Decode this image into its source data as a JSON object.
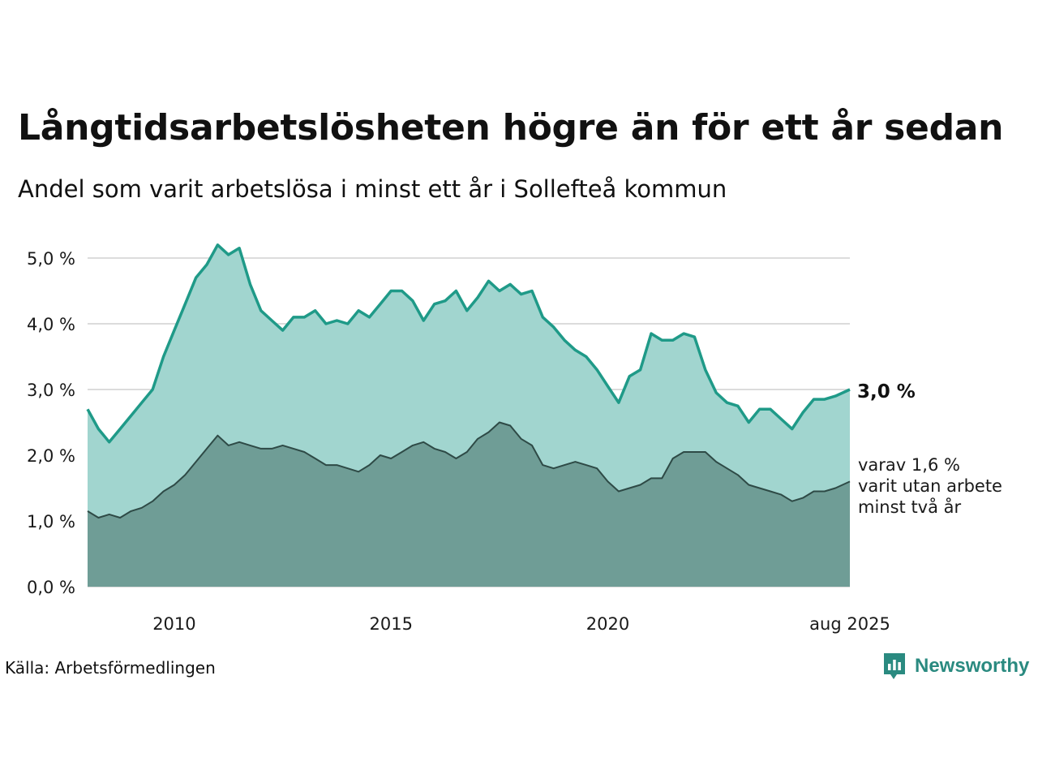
{
  "title": "Långtidsarbetslösheten högre än för ett år sedan",
  "subtitle": "Andel som varit arbetslösa i minst ett år i Sollefteå kommun",
  "source": "Källa: Arbetsförmedlingen",
  "brand": "Newsworthy",
  "colors": {
    "main_line": "#1f9a88",
    "main_fill": "#a1d5cf",
    "sub_fill": "#6f9d96",
    "sub_line": "#2e4a46",
    "grid": "#dcdcdc",
    "brand": "#2a8a80"
  },
  "chart_data": {
    "type": "area",
    "y_ticks": [
      "0,0 %",
      "1,0 %",
      "2,0 %",
      "3,0 %",
      "4,0 %",
      "5,0 %"
    ],
    "x_ticks": [
      "2010",
      "2015",
      "2020",
      "aug 2025"
    ],
    "ylim": [
      0,
      5.5
    ],
    "grid": true,
    "end_label": "3,0 %",
    "sub_note": [
      "varav 1,6 %",
      "varit utan arbete",
      "minst två år"
    ],
    "series": [
      {
        "key": "long_term_1y",
        "points": [
          [
            "2008-01",
            2.7
          ],
          [
            "2008-04",
            2.4
          ],
          [
            "2008-07",
            2.2
          ],
          [
            "2008-10",
            2.4
          ],
          [
            "2009-01",
            2.6
          ],
          [
            "2009-04",
            2.8
          ],
          [
            "2009-07",
            3.0
          ],
          [
            "2009-10",
            3.5
          ],
          [
            "2010-01",
            3.9
          ],
          [
            "2010-04",
            4.3
          ],
          [
            "2010-07",
            4.7
          ],
          [
            "2010-10",
            4.9
          ],
          [
            "2011-01",
            5.2
          ],
          [
            "2011-04",
            5.05
          ],
          [
            "2011-07",
            5.15
          ],
          [
            "2011-10",
            4.6
          ],
          [
            "2012-01",
            4.2
          ],
          [
            "2012-04",
            4.05
          ],
          [
            "2012-07",
            3.9
          ],
          [
            "2012-10",
            4.1
          ],
          [
            "2013-01",
            4.1
          ],
          [
            "2013-04",
            4.2
          ],
          [
            "2013-07",
            4.0
          ],
          [
            "2013-10",
            4.05
          ],
          [
            "2014-01",
            4.0
          ],
          [
            "2014-04",
            4.2
          ],
          [
            "2014-07",
            4.1
          ],
          [
            "2014-10",
            4.3
          ],
          [
            "2015-01",
            4.5
          ],
          [
            "2015-04",
            4.5
          ],
          [
            "2015-07",
            4.35
          ],
          [
            "2015-10",
            4.05
          ],
          [
            "2016-01",
            4.3
          ],
          [
            "2016-04",
            4.35
          ],
          [
            "2016-07",
            4.5
          ],
          [
            "2016-10",
            4.2
          ],
          [
            "2017-01",
            4.4
          ],
          [
            "2017-04",
            4.65
          ],
          [
            "2017-07",
            4.5
          ],
          [
            "2017-10",
            4.6
          ],
          [
            "2018-01",
            4.45
          ],
          [
            "2018-04",
            4.5
          ],
          [
            "2018-07",
            4.1
          ],
          [
            "2018-10",
            3.95
          ],
          [
            "2019-01",
            3.75
          ],
          [
            "2019-04",
            3.6
          ],
          [
            "2019-07",
            3.5
          ],
          [
            "2019-10",
            3.3
          ],
          [
            "2020-01",
            3.05
          ],
          [
            "2020-04",
            2.8
          ],
          [
            "2020-07",
            3.2
          ],
          [
            "2020-10",
            3.3
          ],
          [
            "2021-01",
            3.85
          ],
          [
            "2021-04",
            3.75
          ],
          [
            "2021-07",
            3.75
          ],
          [
            "2021-10",
            3.85
          ],
          [
            "2022-01",
            3.8
          ],
          [
            "2022-04",
            3.3
          ],
          [
            "2022-07",
            2.95
          ],
          [
            "2022-10",
            2.8
          ],
          [
            "2023-01",
            2.75
          ],
          [
            "2023-04",
            2.5
          ],
          [
            "2023-07",
            2.7
          ],
          [
            "2023-10",
            2.7
          ],
          [
            "2024-01",
            2.55
          ],
          [
            "2024-04",
            2.4
          ],
          [
            "2024-07",
            2.65
          ],
          [
            "2024-10",
            2.85
          ],
          [
            "2025-01",
            2.85
          ],
          [
            "2025-04",
            2.9
          ],
          [
            "2025-08",
            3.0
          ]
        ]
      },
      {
        "key": "long_term_2y",
        "points": [
          [
            "2008-01",
            1.15
          ],
          [
            "2008-04",
            1.05
          ],
          [
            "2008-07",
            1.1
          ],
          [
            "2008-10",
            1.05
          ],
          [
            "2009-01",
            1.15
          ],
          [
            "2009-04",
            1.2
          ],
          [
            "2009-07",
            1.3
          ],
          [
            "2009-10",
            1.45
          ],
          [
            "2010-01",
            1.55
          ],
          [
            "2010-04",
            1.7
          ],
          [
            "2010-07",
            1.9
          ],
          [
            "2010-10",
            2.1
          ],
          [
            "2011-01",
            2.3
          ],
          [
            "2011-04",
            2.15
          ],
          [
            "2011-07",
            2.2
          ],
          [
            "2011-10",
            2.15
          ],
          [
            "2012-01",
            2.1
          ],
          [
            "2012-04",
            2.1
          ],
          [
            "2012-07",
            2.15
          ],
          [
            "2012-10",
            2.1
          ],
          [
            "2013-01",
            2.05
          ],
          [
            "2013-04",
            1.95
          ],
          [
            "2013-07",
            1.85
          ],
          [
            "2013-10",
            1.85
          ],
          [
            "2014-01",
            1.8
          ],
          [
            "2014-04",
            1.75
          ],
          [
            "2014-07",
            1.85
          ],
          [
            "2014-10",
            2.0
          ],
          [
            "2015-01",
            1.95
          ],
          [
            "2015-04",
            2.05
          ],
          [
            "2015-07",
            2.15
          ],
          [
            "2015-10",
            2.2
          ],
          [
            "2016-01",
            2.1
          ],
          [
            "2016-04",
            2.05
          ],
          [
            "2016-07",
            1.95
          ],
          [
            "2016-10",
            2.05
          ],
          [
            "2017-01",
            2.25
          ],
          [
            "2017-04",
            2.35
          ],
          [
            "2017-07",
            2.5
          ],
          [
            "2017-10",
            2.45
          ],
          [
            "2018-01",
            2.25
          ],
          [
            "2018-04",
            2.15
          ],
          [
            "2018-07",
            1.85
          ],
          [
            "2018-10",
            1.8
          ],
          [
            "2019-01",
            1.85
          ],
          [
            "2019-04",
            1.9
          ],
          [
            "2019-07",
            1.85
          ],
          [
            "2019-10",
            1.8
          ],
          [
            "2020-01",
            1.6
          ],
          [
            "2020-04",
            1.45
          ],
          [
            "2020-07",
            1.5
          ],
          [
            "2020-10",
            1.55
          ],
          [
            "2021-01",
            1.65
          ],
          [
            "2021-04",
            1.65
          ],
          [
            "2021-07",
            1.95
          ],
          [
            "2021-10",
            2.05
          ],
          [
            "2022-01",
            2.05
          ],
          [
            "2022-04",
            2.05
          ],
          [
            "2022-07",
            1.9
          ],
          [
            "2022-10",
            1.8
          ],
          [
            "2023-01",
            1.7
          ],
          [
            "2023-04",
            1.55
          ],
          [
            "2023-07",
            1.5
          ],
          [
            "2023-10",
            1.45
          ],
          [
            "2024-01",
            1.4
          ],
          [
            "2024-04",
            1.3
          ],
          [
            "2024-07",
            1.35
          ],
          [
            "2024-10",
            1.45
          ],
          [
            "2025-01",
            1.45
          ],
          [
            "2025-04",
            1.5
          ],
          [
            "2025-08",
            1.6
          ]
        ]
      }
    ]
  }
}
